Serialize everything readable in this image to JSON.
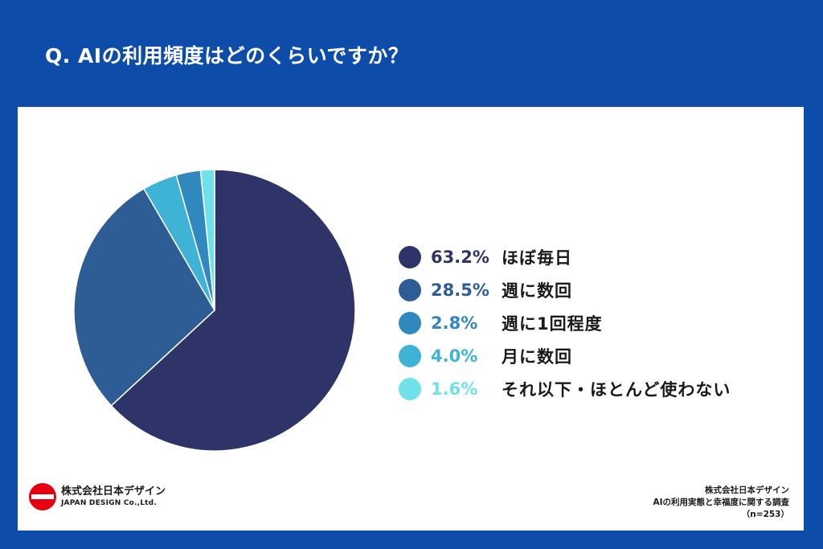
{
  "header": {
    "title": "Q. AIの利用頻度はどのくらいですか？"
  },
  "chart_data": {
    "type": "pie",
    "title": "",
    "slices": [
      {
        "name": "ほぼ毎日",
        "label": "63.2%",
        "value": 63.2,
        "color": "#2f3468"
      },
      {
        "name": "週に数回",
        "label": "28.5%",
        "value": 28.5,
        "color": "#2e5d96"
      },
      {
        "name": "週に1回程度",
        "label": "2.8%",
        "value": 2.8,
        "color": "#3188bf"
      },
      {
        "name": "月に数回",
        "label": "4.0%",
        "value": 4.0,
        "color": "#3fb3d6"
      },
      {
        "name": "それ以下・ほとんど使わない",
        "label": "1.6%",
        "value": 1.6,
        "color": "#6fe1e8"
      }
    ],
    "pie_order": [
      0,
      1,
      3,
      2,
      4
    ],
    "legend_position": "right"
  },
  "footer": {
    "logo_jp": "株式会社日本デザイン",
    "logo_en": "JAPAN DESIGN Co.,Ltd.",
    "source_company": "株式会社日本デザイン",
    "source_survey": "AIの利用実態と幸福度に関する調査",
    "source_n": "（n=253）"
  }
}
